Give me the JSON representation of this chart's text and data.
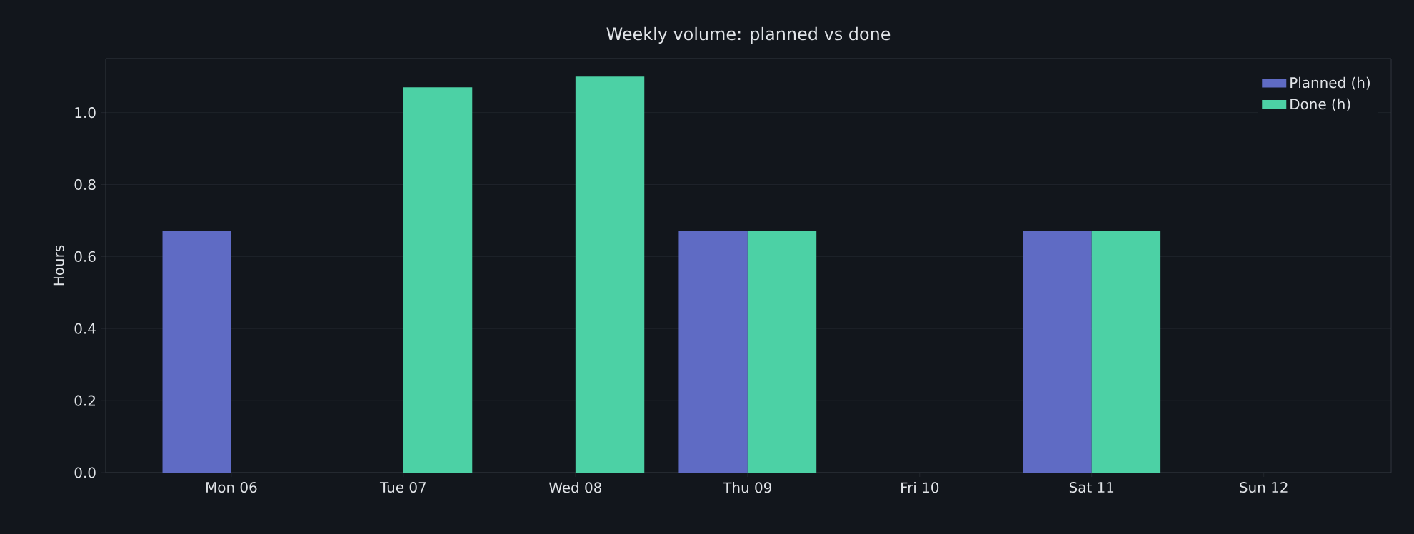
{
  "chart_data": {
    "type": "bar",
    "title": "Weekly volume: planned vs done",
    "ylabel": "Hours",
    "categories": [
      "Mon 06",
      "Tue 07",
      "Wed 08",
      "Thu 09",
      "Fri 10",
      "Sat 11",
      "Sun 12"
    ],
    "series": [
      {
        "name": "Planned (h)",
        "color": "#5f6bc4",
        "values": [
          0.67,
          0,
          0,
          0.67,
          0,
          0.67,
          0
        ]
      },
      {
        "name": "Done (h)",
        "color": "#4cd1a5",
        "values": [
          0,
          1.07,
          1.1,
          0.67,
          0,
          0.67,
          0
        ]
      }
    ],
    "ylim": [
      0,
      1.15
    ],
    "yticks": [
      {
        "value": 0,
        "label": "0.0"
      },
      {
        "value": 0.2,
        "label": "0.2"
      },
      {
        "value": 0.4,
        "label": "0.4"
      },
      {
        "value": 0.6,
        "label": "0.6"
      },
      {
        "value": 0.8,
        "label": "0.8"
      },
      {
        "value": 1.0,
        "label": "1.0"
      }
    ],
    "grid": "y",
    "legend": "top right"
  }
}
